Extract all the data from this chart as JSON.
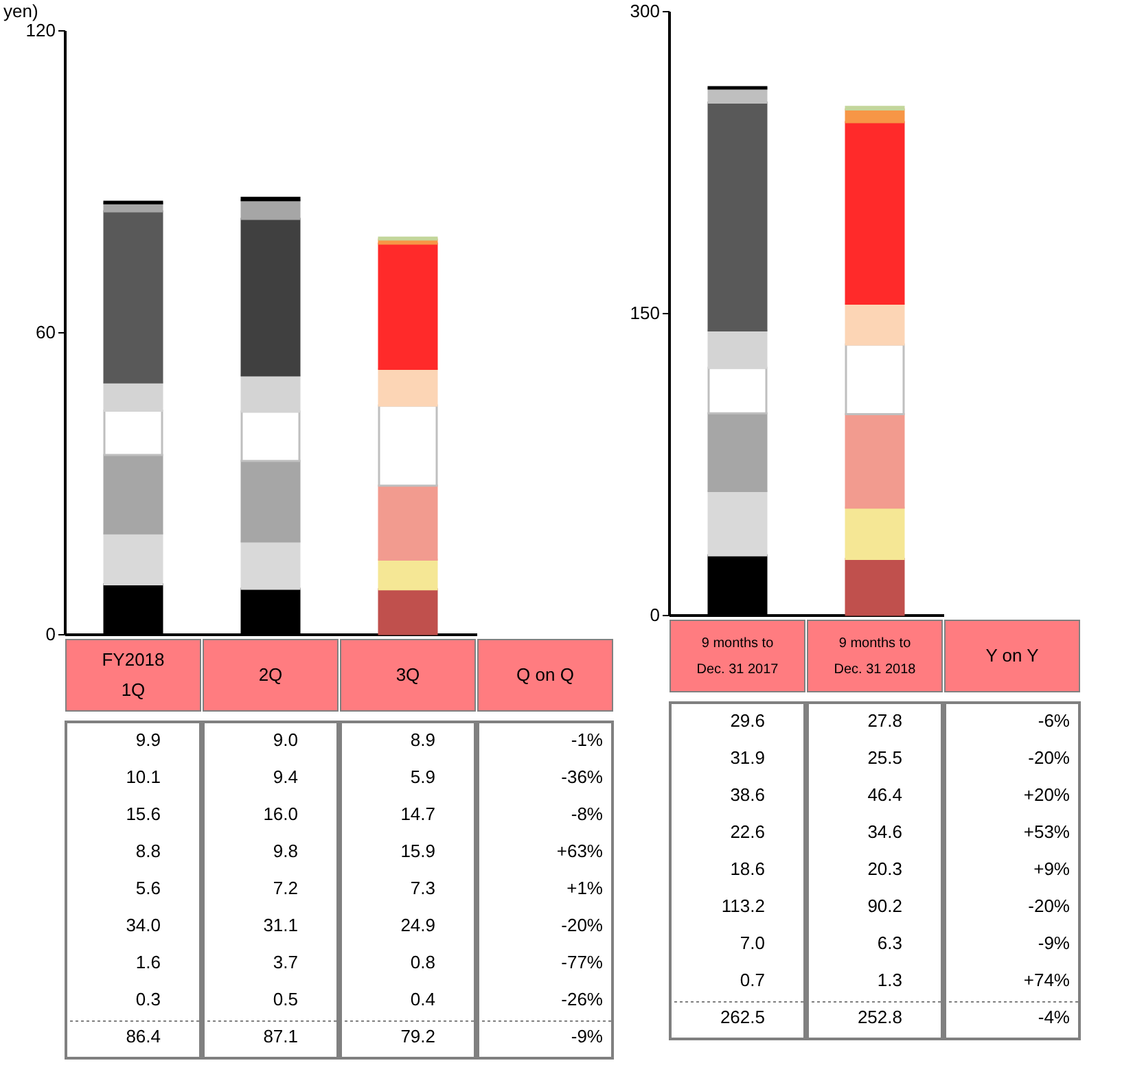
{
  "chart_data": [
    {
      "type": "bar",
      "stacked": true,
      "ylabel": "yen)",
      "categories": [
        "FY2018\n1Q",
        "2Q",
        "3Q"
      ],
      "ylim": [
        0,
        120
      ],
      "yticks": [
        0,
        60,
        120
      ],
      "annotations": [
        "Q on Q",
        "-1%",
        "-36%",
        "-8%",
        "+63%",
        "+1%",
        "-20%",
        "-77%",
        "-26%",
        "-9%",
        "86.4",
        "87.1",
        "79.2"
      ],
      "series": [
        {
          "values": [
            9.9,
            9.0,
            8.9
          ],
          "value_labels": [
            "9.9",
            "9.0",
            "8.9"
          ],
          "colors": [
            "#000000",
            "#000000",
            "#c0504d"
          ]
        },
        {
          "values": [
            10.1,
            9.4,
            5.9
          ],
          "value_labels": [
            "10.1",
            "9.4",
            "5.9"
          ],
          "colors": [
            "#d9d9d9",
            "#d9d9d9",
            "#f5e795"
          ]
        },
        {
          "values": [
            15.6,
            16.0,
            14.7
          ],
          "value_labels": [
            "15.6",
            "16.0",
            "14.7"
          ],
          "colors": [
            "#a6a6a6",
            "#a6a6a6",
            "#f29b8f"
          ]
        },
        {
          "values": [
            8.8,
            9.8,
            15.9
          ],
          "value_labels": [
            "8.8",
            "9.8",
            "15.9"
          ],
          "colors": [
            "#ffffff",
            "#ffffff",
            "#ffffff"
          ]
        },
        {
          "values": [
            5.6,
            7.2,
            7.3
          ],
          "value_labels": [
            "5.6",
            "7.2",
            "7.3"
          ],
          "colors": [
            "#d4d4d4",
            "#d4d4d4",
            "#fcd5b5"
          ]
        },
        {
          "values": [
            34.0,
            31.1,
            24.9
          ],
          "value_labels": [
            "34.0",
            "31.1",
            "24.9"
          ],
          "colors": [
            "#595959",
            "#404040",
            "#ff2a2a"
          ]
        },
        {
          "values": [
            1.6,
            3.7,
            0.8
          ],
          "value_labels": [
            "1.6",
            "3.7",
            "0.8"
          ],
          "colors": [
            "#a6a6a6",
            "#a6a6a6",
            "#f79646"
          ]
        },
        {
          "values": [
            0.3,
            0.5,
            0.4
          ],
          "value_labels": [
            "0.3",
            "0.5",
            "0.4"
          ],
          "colors": [
            "#000000",
            "#000000",
            "#c3d69b"
          ]
        }
      ]
    },
    {
      "type": "bar",
      "stacked": true,
      "categories": [
        "9 months to\nDec. 31 2017",
        "9 months to\nDec. 31 2018"
      ],
      "ylim": [
        0,
        300
      ],
      "yticks": [
        0,
        150,
        300
      ],
      "annotations": [
        "Y on Y",
        "-6%",
        "-20%",
        "+20%",
        "+53%",
        "+9%",
        "-20%",
        "-9%",
        "+74%",
        "-4%",
        "262.5",
        "252.8"
      ],
      "series": [
        {
          "values": [
            29.6,
            27.8
          ],
          "value_labels": [
            "29.6",
            "27.8"
          ],
          "colors": [
            "#000000",
            "#c0504d"
          ]
        },
        {
          "values": [
            31.9,
            25.5
          ],
          "value_labels": [
            "31.9",
            "25.5"
          ],
          "colors": [
            "#d9d9d9",
            "#f5e795"
          ]
        },
        {
          "values": [
            38.6,
            46.4
          ],
          "value_labels": [
            "38.6",
            "46.4"
          ],
          "colors": [
            "#a6a6a6",
            "#f29b8f"
          ]
        },
        {
          "values": [
            22.6,
            34.6
          ],
          "value_labels": [
            "22.6",
            "34.6"
          ],
          "colors": [
            "#ffffff",
            "#ffffff"
          ]
        },
        {
          "values": [
            18.6,
            20.3
          ],
          "value_labels": [
            "18.6",
            "20.3"
          ],
          "colors": [
            "#d4d4d4",
            "#fcd5b5"
          ]
        },
        {
          "values": [
            113.2,
            90.2
          ],
          "value_labels": [
            "113.2",
            "90.2"
          ],
          "colors": [
            "#595959",
            "#ff2a2a"
          ]
        },
        {
          "values": [
            7.0,
            6.3
          ],
          "value_labels": [
            "7.0",
            "6.3"
          ],
          "colors": [
            "#bfbfbf",
            "#f79646"
          ]
        },
        {
          "values": [
            0.7,
            1.3
          ],
          "value_labels": [
            "0.7",
            "1.3"
          ],
          "colors": [
            "#000000",
            "#c3d69b"
          ]
        }
      ]
    }
  ]
}
